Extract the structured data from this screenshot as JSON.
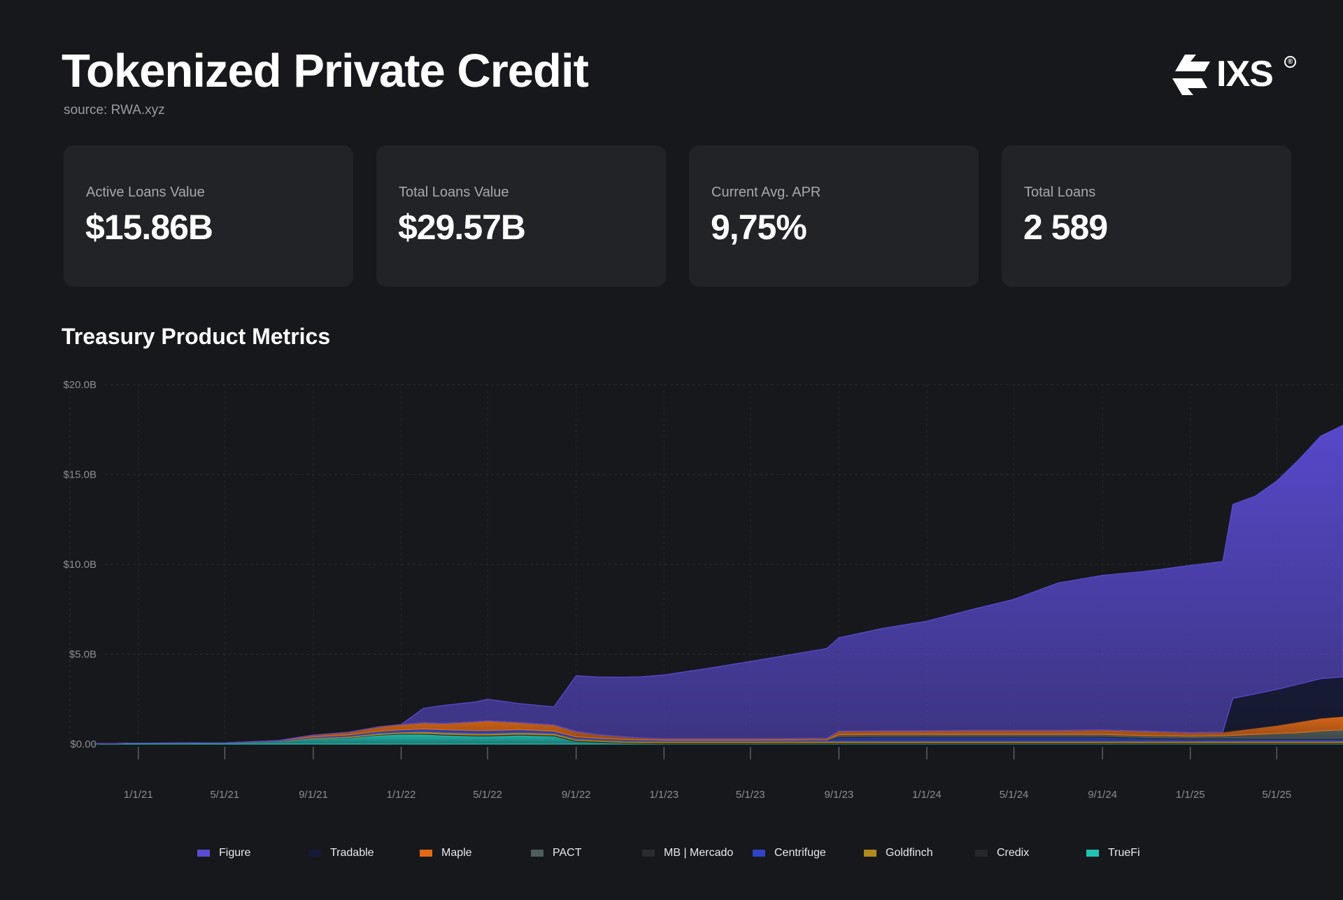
{
  "header": {
    "title": "Tokenized Private Credit",
    "source": "source: RWA.xyz",
    "logo_text": "IXS",
    "logo_mark": "®"
  },
  "cards": [
    {
      "label": "Active Loans Value",
      "value": "$15.86B"
    },
    {
      "label": "Total Loans Value",
      "value": "$29.57B"
    },
    {
      "label": "Current Avg. APR",
      "value": "9,75%"
    },
    {
      "label": "Total Loans",
      "value": "2 589"
    }
  ],
  "colors": {
    "background": "#17181c",
    "card": "#222327",
    "Figure": "#5a4bd3",
    "Tradable": "#161a38",
    "Maple": "#e06a16",
    "PACT": "#4d5e5b",
    "MB | Mercado": "#2a2b30",
    "Centrifuge": "#2f44c7",
    "Goldfinch": "#b38a1e",
    "Credix": "#26272b",
    "TrueFi": "#22c2b5"
  },
  "chart_data": {
    "type": "area",
    "title": "Treasury Product Metrics",
    "xlabel": "",
    "ylabel": "",
    "stacked": true,
    "ylim": [
      0,
      20
    ],
    "y_ticks": [
      "$0.00",
      "$5.0B",
      "$10.0B",
      "$15.0B",
      "$20.0B"
    ],
    "x_ticks": [
      "1/1/21",
      "5/1/21",
      "9/1/21",
      "1/1/22",
      "5/1/22",
      "9/1/22",
      "1/1/23",
      "5/1/23",
      "9/1/23",
      "1/1/24",
      "5/1/24",
      "9/1/24",
      "1/1/25",
      "5/1/25"
    ],
    "grid": true,
    "legend_position": "bottom",
    "x": [
      "2020-11-01",
      "2021-01-01",
      "2021-05-01",
      "2021-07-15",
      "2021-09-01",
      "2021-10-20",
      "2021-12-01",
      "2022-01-01",
      "2022-02-01",
      "2022-03-01",
      "2022-04-15",
      "2022-05-01",
      "2022-06-15",
      "2022-08-01",
      "2022-09-01",
      "2022-10-01",
      "2022-11-01",
      "2022-12-01",
      "2023-01-01",
      "2023-03-01",
      "2023-05-01",
      "2023-07-01",
      "2023-08-15",
      "2023-09-01",
      "2023-11-01",
      "2024-01-01",
      "2024-03-01",
      "2024-05-01",
      "2024-07-01",
      "2024-09-01",
      "2024-11-01",
      "2025-01-01",
      "2025-02-15",
      "2025-03-01",
      "2025-04-01",
      "2025-05-01",
      "2025-06-01",
      "2025-07-01",
      "2025-08-01"
    ],
    "series": [
      {
        "name": "TrueFi",
        "values": [
          0.02,
          0.05,
          0.06,
          0.15,
          0.3,
          0.35,
          0.5,
          0.55,
          0.55,
          0.5,
          0.45,
          0.45,
          0.5,
          0.45,
          0.15,
          0.1,
          0.05,
          0.03,
          0.02,
          0.02,
          0.02,
          0.02,
          0.02,
          0.02,
          0.02,
          0.02,
          0.02,
          0.02,
          0.02,
          0.02,
          0.02,
          0.02,
          0.02,
          0.02,
          0.02,
          0.02,
          0.02,
          0.02,
          0.02
        ]
      },
      {
        "name": "Credix",
        "values": [
          0,
          0,
          0,
          0,
          0,
          0.02,
          0.03,
          0.04,
          0.05,
          0.05,
          0.05,
          0.05,
          0.05,
          0.05,
          0.05,
          0.05,
          0.05,
          0.05,
          0.05,
          0.05,
          0.05,
          0.05,
          0.05,
          0.05,
          0.05,
          0.05,
          0.05,
          0.05,
          0.05,
          0.05,
          0.05,
          0.05,
          0.05,
          0.05,
          0.05,
          0.05,
          0.05,
          0.05,
          0.05
        ]
      },
      {
        "name": "Goldfinch",
        "values": [
          0,
          0,
          0,
          0.02,
          0.04,
          0.06,
          0.08,
          0.08,
          0.1,
          0.1,
          0.1,
          0.1,
          0.1,
          0.1,
          0.1,
          0.1,
          0.1,
          0.1,
          0.1,
          0.1,
          0.1,
          0.1,
          0.1,
          0.1,
          0.1,
          0.1,
          0.1,
          0.1,
          0.1,
          0.1,
          0.1,
          0.1,
          0.1,
          0.1,
          0.1,
          0.1,
          0.1,
          0.1,
          0.1
        ]
      },
      {
        "name": "Centrifuge",
        "values": [
          0,
          0,
          0.01,
          0.03,
          0.06,
          0.08,
          0.1,
          0.12,
          0.14,
          0.15,
          0.15,
          0.15,
          0.15,
          0.12,
          0.1,
          0.08,
          0.07,
          0.06,
          0.05,
          0.05,
          0.05,
          0.06,
          0.07,
          0.2,
          0.22,
          0.22,
          0.22,
          0.22,
          0.22,
          0.22,
          0.15,
          0.12,
          0.12,
          0.12,
          0.12,
          0.12,
          0.12,
          0.12,
          0.12
        ]
      },
      {
        "name": "MB | Mercado",
        "values": [
          0,
          0,
          0,
          0,
          0,
          0,
          0,
          0,
          0,
          0,
          0,
          0,
          0,
          0,
          0,
          0,
          0,
          0,
          0,
          0,
          0,
          0,
          0,
          0.05,
          0.05,
          0.05,
          0.05,
          0.05,
          0.05,
          0.05,
          0.05,
          0.05,
          0.05,
          0.05,
          0.05,
          0.05,
          0.05,
          0.05,
          0.05
        ]
      },
      {
        "name": "PACT",
        "values": [
          0,
          0,
          0,
          0,
          0,
          0,
          0,
          0,
          0,
          0,
          0,
          0,
          0,
          0,
          0,
          0,
          0,
          0,
          0,
          0,
          0,
          0,
          0,
          0.1,
          0.1,
          0.1,
          0.1,
          0.1,
          0.1,
          0.1,
          0.1,
          0.1,
          0.12,
          0.15,
          0.2,
          0.25,
          0.3,
          0.4,
          0.45
        ]
      },
      {
        "name": "Maple",
        "values": [
          0,
          0,
          0,
          0,
          0.1,
          0.15,
          0.25,
          0.3,
          0.35,
          0.35,
          0.5,
          0.55,
          0.4,
          0.35,
          0.3,
          0.2,
          0.15,
          0.1,
          0.08,
          0.08,
          0.08,
          0.08,
          0.08,
          0.2,
          0.2,
          0.2,
          0.22,
          0.22,
          0.22,
          0.25,
          0.25,
          0.2,
          0.2,
          0.25,
          0.35,
          0.45,
          0.6,
          0.7,
          0.75
        ]
      },
      {
        "name": "Tradable",
        "values": [
          0,
          0,
          0,
          0,
          0,
          0,
          0,
          0,
          0,
          0,
          0,
          0,
          0,
          0,
          0,
          0,
          0,
          0,
          0,
          0,
          0,
          0,
          0,
          0,
          0,
          0,
          0,
          0,
          0,
          0,
          0,
          0,
          0,
          1.8,
          1.9,
          2.0,
          2.1,
          2.2,
          2.2
        ]
      },
      {
        "name": "Figure",
        "values": [
          0,
          0,
          0,
          0,
          0,
          0,
          0,
          0,
          0.8,
          1.0,
          1.1,
          1.2,
          1.05,
          1.0,
          3.1,
          3.2,
          3.3,
          3.4,
          3.55,
          3.9,
          4.3,
          4.7,
          5.0,
          5.2,
          5.7,
          6.1,
          6.7,
          7.3,
          8.2,
          8.6,
          8.9,
          9.3,
          9.5,
          10.8,
          11.0,
          11.6,
          12.5,
          13.5,
          14.0
        ]
      }
    ]
  }
}
